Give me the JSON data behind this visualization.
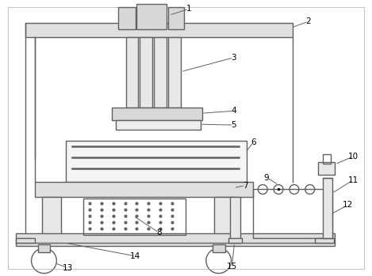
{
  "bg_color": "#ffffff",
  "line_color": "#606060",
  "lw": 1.0,
  "font_size": 7.5
}
